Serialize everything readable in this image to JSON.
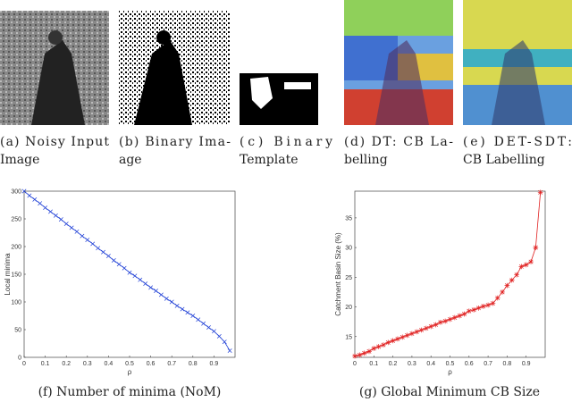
{
  "panels": [
    {
      "caption": [
        "(a) Noisy Input",
        "Image"
      ]
    },
    {
      "caption": [
        "(b) Binary Ima-",
        "age"
      ]
    },
    {
      "caption": [
        "(c) Binary",
        "Template"
      ]
    },
    {
      "caption": [
        "(d) DT: CB La-",
        "belling"
      ]
    },
    {
      "caption": [
        "(e) DET-SDT:",
        "CB Labelling"
      ]
    }
  ],
  "chart_data": [
    {
      "type": "line",
      "caption": "(f) Number of minima (NoM)",
      "xlabel": "ρ",
      "ylabel": "Local minima",
      "marker": "x",
      "color": "#1f3fd6",
      "xlim": [
        0,
        1
      ],
      "ylim": [
        0,
        300
      ],
      "xticks": [
        0,
        0.1,
        0.2,
        0.3,
        0.4,
        0.5,
        0.6,
        0.7,
        0.8,
        0.9
      ],
      "yticks": [
        0,
        50,
        100,
        150,
        200,
        250,
        300
      ],
      "x": [
        0,
        0.025,
        0.05,
        0.075,
        0.1,
        0.125,
        0.15,
        0.175,
        0.2,
        0.225,
        0.25,
        0.275,
        0.3,
        0.325,
        0.35,
        0.375,
        0.4,
        0.425,
        0.45,
        0.475,
        0.5,
        0.525,
        0.55,
        0.575,
        0.6,
        0.625,
        0.65,
        0.675,
        0.7,
        0.725,
        0.75,
        0.775,
        0.8,
        0.825,
        0.85,
        0.875,
        0.9,
        0.925,
        0.95,
        0.975
      ],
      "values": [
        300,
        292,
        285,
        278,
        270,
        263,
        256,
        249,
        241,
        234,
        227,
        219,
        212,
        205,
        197,
        190,
        183,
        175,
        168,
        161,
        153,
        147,
        140,
        133,
        126,
        120,
        113,
        106,
        100,
        93,
        87,
        81,
        75,
        68,
        61,
        54,
        47,
        38,
        28,
        12
      ]
    },
    {
      "type": "line",
      "caption": "(g) Global Minimum CB Size",
      "xlabel": "ρ",
      "ylabel": "Catchment Basin Size (%)",
      "marker": "*",
      "color": "#e02020",
      "xlim": [
        0,
        1
      ],
      "ylim": [
        11.5,
        39.5
      ],
      "xticks": [
        0,
        0.1,
        0.2,
        0.3,
        0.4,
        0.5,
        0.6,
        0.7,
        0.8,
        0.9
      ],
      "yticks": [
        15,
        20,
        25,
        30,
        35
      ],
      "x": [
        0,
        0.025,
        0.05,
        0.075,
        0.1,
        0.125,
        0.15,
        0.175,
        0.2,
        0.225,
        0.25,
        0.275,
        0.3,
        0.325,
        0.35,
        0.375,
        0.4,
        0.425,
        0.45,
        0.475,
        0.5,
        0.525,
        0.55,
        0.575,
        0.6,
        0.625,
        0.65,
        0.675,
        0.7,
        0.725,
        0.75,
        0.775,
        0.8,
        0.825,
        0.85,
        0.875,
        0.9,
        0.925,
        0.95,
        0.975
      ],
      "values": [
        11.7,
        11.9,
        12.2,
        12.5,
        13.0,
        13.3,
        13.6,
        14.0,
        14.3,
        14.6,
        14.9,
        15.2,
        15.5,
        15.8,
        16.1,
        16.4,
        16.7,
        17.0,
        17.4,
        17.6,
        17.9,
        18.2,
        18.5,
        18.8,
        19.3,
        19.5,
        19.8,
        20.1,
        20.3,
        20.6,
        21.5,
        22.5,
        23.6,
        24.5,
        25.4,
        26.8,
        27.1,
        27.6,
        30.0,
        39.3
      ]
    }
  ]
}
